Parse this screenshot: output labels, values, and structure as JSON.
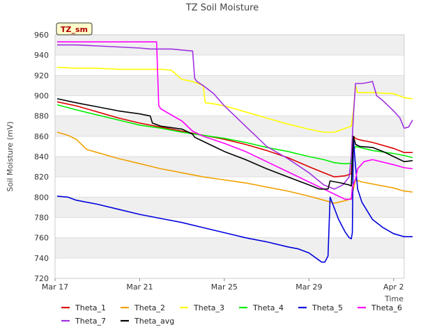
{
  "chart_data": {
    "type": "line",
    "title": "TZ Soil Moisture",
    "xlabel": "Time",
    "ylabel": "Soil Moisture (mV)",
    "ylim": [
      720,
      960
    ],
    "xlim": [
      0,
      16.5
    ],
    "y_ticks": [
      720,
      740,
      760,
      780,
      800,
      820,
      840,
      860,
      880,
      900,
      920,
      940,
      960
    ],
    "x_ticks": [
      {
        "value": 0,
        "label": "Mar 17"
      },
      {
        "value": 4,
        "label": "Mar 21"
      },
      {
        "value": 8,
        "label": "Mar 25"
      },
      {
        "value": 12,
        "label": "Mar 29"
      },
      {
        "value": 16,
        "label": "Apr 2"
      }
    ],
    "badge": "TZ_sm",
    "grid": true,
    "legend_position": "bottom",
    "series": [
      {
        "name": "Theta_1",
        "color": "#dd0000",
        "x": [
          0.1,
          1,
          2,
          3,
          4,
          5,
          6,
          7,
          8,
          9,
          10,
          11,
          12,
          12.7,
          13.2,
          13.7,
          14.0,
          14.1,
          14.2,
          14.3,
          14.5,
          15,
          16,
          16.5,
          16.9
        ],
        "y": [
          894,
          890,
          884,
          878,
          873,
          869,
          865,
          861,
          857,
          852,
          846,
          839,
          830,
          824,
          820,
          821,
          823,
          860,
          858,
          857,
          856,
          854,
          848,
          844,
          844
        ]
      },
      {
        "name": "Theta_2",
        "color": "#f0a000",
        "x": [
          0.1,
          0.6,
          1.0,
          1.5,
          2,
          3,
          4,
          5,
          6,
          7,
          8,
          9,
          10,
          11,
          12,
          12.7,
          13.2,
          13.8,
          14.0,
          14.2,
          14.5,
          15,
          16,
          16.5,
          16.9
        ],
        "y": [
          864,
          861,
          857,
          847,
          844,
          838,
          833,
          828,
          824,
          820,
          817,
          814,
          810,
          806,
          801,
          797,
          794,
          797,
          799,
          817,
          815,
          813,
          809,
          806,
          805
        ]
      },
      {
        "name": "Theta_3",
        "color": "#ffff00",
        "x": [
          0.1,
          1,
          2,
          3,
          4,
          5,
          5.5,
          6,
          6.5,
          7.0,
          7.1,
          7.5,
          8,
          9,
          10,
          11,
          12,
          12.7,
          13.2,
          13.6,
          14.0,
          14.1,
          14.2,
          14.3,
          15,
          16,
          16.5,
          16.9
        ],
        "y": [
          928,
          927,
          927,
          926,
          926,
          926,
          925,
          916,
          914,
          910,
          893,
          892,
          890,
          884,
          878,
          872,
          867,
          864,
          864,
          867,
          870,
          885,
          910,
          903,
          903,
          902,
          898,
          897
        ]
      },
      {
        "name": "Theta_4",
        "color": "#00ee00",
        "x": [
          0.1,
          1,
          2,
          3,
          4,
          5,
          6,
          7,
          8,
          9,
          10,
          11,
          12,
          12.7,
          13.2,
          13.6,
          14.0,
          14.1,
          14.2,
          14.4,
          15,
          16,
          16.5,
          16.9
        ],
        "y": [
          891,
          886,
          881,
          876,
          871,
          868,
          864,
          861,
          858,
          854,
          849,
          845,
          840,
          837,
          834,
          833,
          833,
          845,
          850,
          849,
          846,
          843,
          841,
          839
        ]
      },
      {
        "name": "Theta_5",
        "color": "#0000dd",
        "x": [
          0.1,
          0.6,
          1,
          2,
          3,
          4,
          5,
          6,
          7,
          8,
          9,
          10,
          11,
          11.5,
          12,
          12.4,
          12.6,
          12.75,
          12.85,
          12.9,
          13.0,
          13.4,
          13.7,
          13.9,
          14.0,
          14.05,
          14.1,
          14.2,
          14.3,
          14.5,
          15,
          15.5,
          16,
          16.5,
          16.9
        ],
        "y": [
          801,
          800,
          797,
          793,
          788,
          783,
          779,
          775,
          770,
          765,
          760,
          756,
          751,
          749,
          745,
          739,
          736,
          736,
          740,
          742,
          800,
          778,
          766,
          760,
          759,
          765,
          858,
          830,
          808,
          795,
          778,
          770,
          764,
          761,
          761
        ]
      },
      {
        "name": "Theta_6",
        "color": "#ff00ff",
        "x": [
          0.1,
          1,
          2,
          3,
          4,
          4.6,
          4.8,
          4.9,
          5.0,
          6,
          6.5,
          7,
          8,
          9,
          10,
          11,
          12,
          12.7,
          13.2,
          13.7,
          14.0,
          14.05,
          14.2,
          14.3,
          14.6,
          15,
          16,
          16.5,
          16.9
        ],
        "y": [
          953,
          953,
          953,
          953,
          953,
          953,
          953,
          890,
          887,
          875,
          865,
          860,
          853,
          845,
          835,
          825,
          815,
          808,
          803,
          798,
          798,
          810,
          818,
          828,
          835,
          837,
          832,
          829,
          828
        ]
      },
      {
        "name": "Theta_7",
        "color": "#a030e0",
        "x": [
          0.1,
          1,
          2,
          3,
          4,
          4.5,
          5,
          5.5,
          6,
          6.5,
          6.6,
          6.7,
          7,
          7.5,
          8,
          8.5,
          9,
          9.5,
          10,
          11,
          12,
          12.7,
          13.2,
          13.6,
          13.9,
          14.0,
          14.1,
          14.2,
          14.5,
          14.8,
          15.0,
          15.2,
          15.5,
          16,
          16.3,
          16.5,
          16.7,
          16.9
        ],
        "y": [
          950,
          950,
          949,
          948,
          947,
          946,
          946,
          946,
          945,
          944,
          917,
          914,
          910,
          902,
          890,
          880,
          870,
          860,
          850,
          838,
          824,
          812,
          808,
          812,
          820,
          840,
          880,
          912,
          912,
          913,
          914,
          900,
          895,
          885,
          878,
          868,
          869,
          876
        ]
      },
      {
        "name": "Theta_avg",
        "color": "#000000",
        "x": [
          0.1,
          1,
          2,
          3,
          4,
          4.5,
          4.6,
          5,
          6,
          6.5,
          6.6,
          7,
          7.5,
          8,
          9,
          10,
          11,
          12,
          12.5,
          12.9,
          13.0,
          13.5,
          13.9,
          14.0,
          14.1,
          14.2,
          14.4,
          15,
          15.5,
          16,
          16.5,
          16.9
        ],
        "y": [
          897,
          893,
          889,
          885,
          882,
          880,
          873,
          870,
          867,
          862,
          859,
          855,
          850,
          845,
          837,
          828,
          820,
          812,
          808,
          808,
          816,
          814,
          812,
          811,
          860,
          852,
          850,
          849,
          845,
          840,
          835,
          836
        ]
      }
    ]
  }
}
